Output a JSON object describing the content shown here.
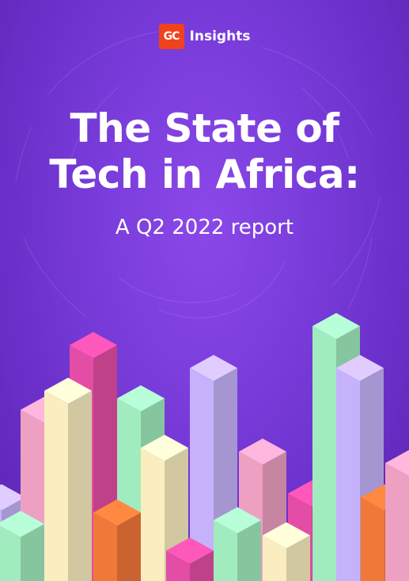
{
  "brand": {
    "logo_text": "GC",
    "name": "Insights"
  },
  "cover": {
    "title_line1": "The State of",
    "title_line2": "Tech in Africa:",
    "subtitle": "A Q2 2022 report"
  },
  "colors": {
    "background": "#7a3ddc",
    "logo": "#f0421c",
    "bars": [
      "#c9b6ff",
      "#f2a3c6",
      "#e94fa8",
      "#a4f1c2",
      "#fff3c4",
      "#f57a3a"
    ]
  },
  "decoration": {
    "style": "isometric-bars",
    "bars": [
      {
        "color": "#c9b6ff",
        "level": 0.22
      },
      {
        "color": "#f2a3c6",
        "level": 0.45
      },
      {
        "color": "#e94fa8",
        "level": 0.62
      },
      {
        "color": "#a4f1c2",
        "level": 0.48
      },
      {
        "color": "#fff3c4",
        "level": 0.35
      },
      {
        "color": "#f57a3a",
        "level": 0.18
      },
      {
        "color": "#a4f1c2",
        "level": 0.15
      },
      {
        "color": "#fff3c4",
        "level": 0.5
      },
      {
        "color": "#c9b6ff",
        "level": 0.56
      },
      {
        "color": "#e94fa8",
        "level": 0.08
      },
      {
        "color": "#f2a3c6",
        "level": 0.34
      },
      {
        "color": "#a4f1c2",
        "level": 0.16
      },
      {
        "color": "#e94fa8",
        "level": 0.23
      },
      {
        "color": "#fff3c4",
        "level": 0.12
      },
      {
        "color": "#a4f1c2",
        "level": 0.67
      },
      {
        "color": "#c9b6ff",
        "level": 0.56
      },
      {
        "color": "#f57a3a",
        "level": 0.22
      },
      {
        "color": "#f2a3c6",
        "level": 0.31
      }
    ]
  }
}
